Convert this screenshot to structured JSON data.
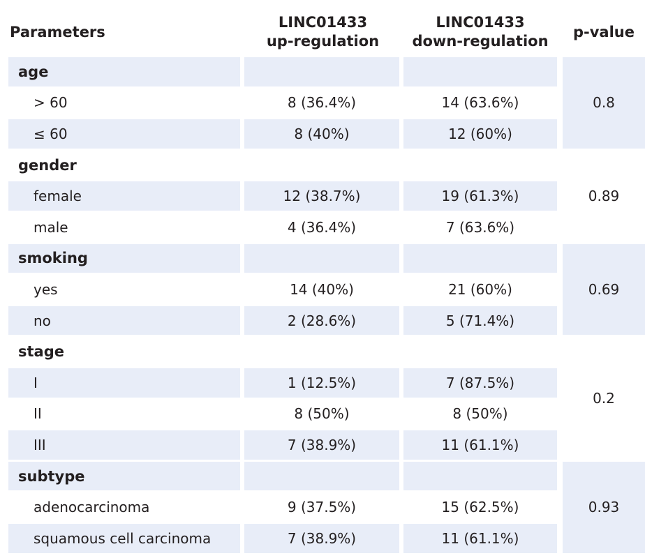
{
  "headers": {
    "parameters": "Parameters",
    "up": [
      "LINC01433",
      "up-regulation"
    ],
    "down": [
      "LINC01433",
      "down-regulation"
    ],
    "pvalue": "p-value"
  },
  "groups": [
    {
      "category": "age",
      "p_value": "0.8",
      "rows": [
        {
          "label": "> 60",
          "up": "8 (36.4%)",
          "down": "14 (63.6%)"
        },
        {
          "label": "≤ 60",
          "up": "8 (40%)",
          "down": "12 (60%)"
        }
      ]
    },
    {
      "category": "gender",
      "p_value": "0.89",
      "rows": [
        {
          "label": "female",
          "up": "12 (38.7%)",
          "down": "19 (61.3%)"
        },
        {
          "label": "male",
          "up": "4 (36.4%)",
          "down": "7 (63.6%)"
        }
      ]
    },
    {
      "category": "smoking",
      "p_value": "0.69",
      "rows": [
        {
          "label": "yes",
          "up": "14 (40%)",
          "down": "21 (60%)"
        },
        {
          "label": "no",
          "up": "2 (28.6%)",
          "down": "5 (71.4%)"
        }
      ]
    },
    {
      "category": "stage",
      "p_value": "0.2",
      "rows": [
        {
          "label": "I",
          "up": "1 (12.5%)",
          "down": "7 (87.5%)"
        },
        {
          "label": "II",
          "up": "8 (50%)",
          "down": "8 (50%)"
        },
        {
          "label": "III",
          "up": "7 (38.9%)",
          "down": "11 (61.1%)"
        }
      ]
    },
    {
      "category": "subtype",
      "p_value": "0.93",
      "rows": [
        {
          "label": "adenocarcinoma",
          "up": "9 (37.5%)",
          "down": "15 (62.5%)"
        },
        {
          "label": "squamous cell carcinoma",
          "up": "7 (38.9%)",
          "down": "11 (61.1%)"
        }
      ]
    }
  ],
  "colors": {
    "shade": "#e8edf8",
    "text": "#231f20"
  }
}
